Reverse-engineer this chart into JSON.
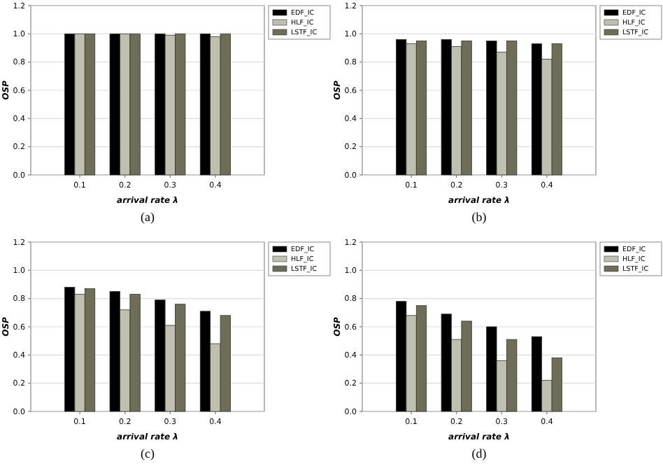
{
  "chart_data": [
    {
      "type": "bar",
      "xlabel": "arrival rate λ",
      "ylabel": "OSP",
      "annotations": [
        "(a)"
      ],
      "categories": [
        "0.1",
        "0.2",
        "0.3",
        "0.4"
      ],
      "series": [
        {
          "name": "EDF_IC",
          "color": "#000000",
          "values": [
            1,
            1,
            1,
            1
          ]
        },
        {
          "name": "HLF_IC",
          "color": "#c0c0b0",
          "values": [
            1,
            1,
            0.99,
            0.98
          ]
        },
        {
          "name": "LSTF_IC",
          "color": "#6e6e58",
          "values": [
            1,
            1,
            1,
            1
          ]
        }
      ],
      "ylim": [
        0,
        1.2
      ],
      "yticks": [
        {
          "value": 0,
          "label": "0.0"
        },
        {
          "value": 0.2,
          "label": "0.2"
        },
        {
          "value": 0.4,
          "label": "0.4"
        },
        {
          "value": 0.6,
          "label": "0.6"
        },
        {
          "value": 0.8,
          "label": "0.8"
        },
        {
          "value": 1,
          "label": "1.0"
        },
        {
          "value": 1.2,
          "label": "1.2"
        }
      ],
      "grid": "y",
      "legend": "top right"
    },
    {
      "type": "bar",
      "xlabel": "arrival rate λ",
      "ylabel": "OSP",
      "annotations": [
        "(b)"
      ],
      "categories": [
        "0.1",
        "0.2",
        "0.3",
        "0.4"
      ],
      "series": [
        {
          "name": "EDF_IC",
          "color": "#000000",
          "values": [
            0.96,
            0.96,
            0.95,
            0.93
          ]
        },
        {
          "name": "HLF_IC",
          "color": "#c0c0b0",
          "values": [
            0.93,
            0.91,
            0.87,
            0.82
          ]
        },
        {
          "name": "LSTF_IC",
          "color": "#6e6e58",
          "values": [
            0.95,
            0.95,
            0.95,
            0.93
          ]
        }
      ],
      "ylim": [
        0,
        1.2
      ],
      "yticks": [
        {
          "value": 0,
          "label": "0.0"
        },
        {
          "value": 0.2,
          "label": "0.2"
        },
        {
          "value": 0.4,
          "label": "0.4"
        },
        {
          "value": 0.6,
          "label": "0.6"
        },
        {
          "value": 0.8,
          "label": "0.8"
        },
        {
          "value": 1,
          "label": "1.0"
        },
        {
          "value": 1.2,
          "label": "1.2"
        }
      ],
      "grid": "y",
      "legend": "top right"
    },
    {
      "type": "bar",
      "xlabel": "arrival rate λ",
      "ylabel": "OSP",
      "annotations": [
        "(c)"
      ],
      "categories": [
        "0.1",
        "0.2",
        "0.3",
        "0.4"
      ],
      "series": [
        {
          "name": "EDF_IC",
          "color": "#000000",
          "values": [
            0.88,
            0.85,
            0.79,
            0.71
          ]
        },
        {
          "name": "HLF_IC",
          "color": "#c0c0b0",
          "values": [
            0.83,
            0.72,
            0.61,
            0.48
          ]
        },
        {
          "name": "LSTF_IC",
          "color": "#6e6e58",
          "values": [
            0.87,
            0.83,
            0.76,
            0.68
          ]
        }
      ],
      "ylim": [
        0,
        1.2
      ],
      "yticks": [
        {
          "value": 0,
          "label": "0.0"
        },
        {
          "value": 0.2,
          "label": "0.2"
        },
        {
          "value": 0.4,
          "label": "0.4"
        },
        {
          "value": 0.6,
          "label": "0.6"
        },
        {
          "value": 0.8,
          "label": "0.8"
        },
        {
          "value": 1,
          "label": "1.0"
        },
        {
          "value": 1.2,
          "label": "1.2"
        }
      ],
      "grid": "y",
      "legend": "top right"
    },
    {
      "type": "bar",
      "xlabel": "arrival rate λ",
      "ylabel": "OSP",
      "annotations": [
        "(d)"
      ],
      "categories": [
        "0.1",
        "0.2",
        "0.3",
        "0.4"
      ],
      "series": [
        {
          "name": "EDF_IC",
          "color": "#000000",
          "values": [
            0.78,
            0.69,
            0.6,
            0.53
          ]
        },
        {
          "name": "HLF_IC",
          "color": "#c0c0b0",
          "values": [
            0.68,
            0.51,
            0.36,
            0.22
          ]
        },
        {
          "name": "LSTF_IC",
          "color": "#6e6e58",
          "values": [
            0.75,
            0.64,
            0.51,
            0.38
          ]
        }
      ],
      "ylim": [
        0,
        1.2
      ],
      "yticks": [
        {
          "value": 0,
          "label": "0.0"
        },
        {
          "value": 0.2,
          "label": "0.2"
        },
        {
          "value": 0.4,
          "label": "0.4"
        },
        {
          "value": 0.6,
          "label": "0.6"
        },
        {
          "value": 0.8,
          "label": "0.8"
        },
        {
          "value": 1,
          "label": "1.0"
        },
        {
          "value": 1.2,
          "label": "1.2"
        }
      ],
      "grid": "y",
      "legend": "top right"
    }
  ]
}
